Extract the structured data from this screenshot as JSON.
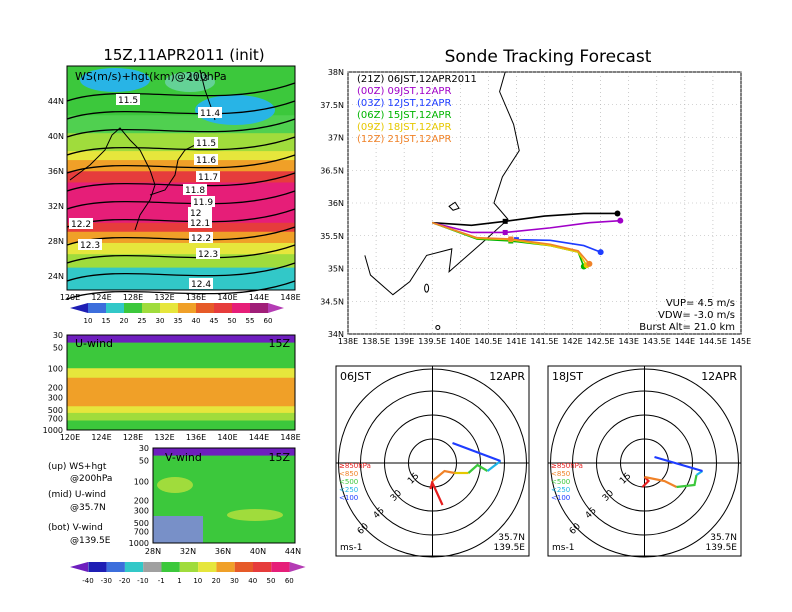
{
  "left": {
    "map_title": "15Z,11APR2011 (init)",
    "map_label": "WS(m/s)+hgt(km)@200hPa",
    "map_top_label": "11.3",
    "lat_ticks": [
      "44N",
      "40N",
      "36N",
      "32N",
      "28N",
      "24N"
    ],
    "lon_ticks": [
      "120E",
      "124E",
      "128E",
      "132E",
      "136E",
      "140E",
      "144E",
      "148E"
    ],
    "hgt_labels": [
      "11.5",
      "11.4",
      "11.5",
      "11.6",
      "11.7",
      "11.8",
      "11.9",
      "12",
      "12.1",
      "12.2",
      "12.3",
      "12.2",
      "12.3",
      "12.4"
    ],
    "ws_colorbar": [
      "10",
      "15",
      "20",
      "25",
      "30",
      "35",
      "40",
      "45",
      "50",
      "55",
      "60"
    ],
    "u_label": "U-wind",
    "u_time": "15Z",
    "u_p_ticks": [
      "30",
      "50",
      "100",
      "200",
      "300",
      "500",
      "700",
      "1000"
    ],
    "u_lon_ticks": [
      "120E",
      "124E",
      "128E",
      "132E",
      "136E",
      "140E",
      "144E",
      "148E"
    ],
    "v_label": "V-wind",
    "v_time": "15Z",
    "v_p_ticks": [
      "30",
      "50",
      "100",
      "200",
      "300",
      "500",
      "700",
      "1000"
    ],
    "v_lat_ticks": [
      "28N",
      "32N",
      "36N",
      "40N",
      "44N"
    ],
    "legend": [
      "(up) WS+hgt",
      "@200hPa",
      "(mid) U-wind",
      "@35.7N",
      "(bot) V-wind",
      "@139.5E"
    ],
    "wind_colorbar": [
      "-40",
      "-30",
      "-20",
      "-10",
      "-1",
      "1",
      "10",
      "20",
      "30",
      "40",
      "50",
      "60"
    ]
  },
  "right": {
    "title": "Sonde Tracking Forecast",
    "launches": [
      {
        "label": "(21Z)  06JST,12APR2011",
        "color": "#000000"
      },
      {
        "label": "(00Z)  09JST,12APR",
        "color": "#a000c8"
      },
      {
        "label": "(03Z)  12JST,12APR",
        "color": "#1e3cff"
      },
      {
        "label": "(06Z)  15JST,12APR",
        "color": "#00b400"
      },
      {
        "label": "(09Z)  18JST,12APR",
        "color": "#e6c800"
      },
      {
        "label": "(12Z)  21JST,12APR",
        "color": "#f08228"
      }
    ],
    "lat_ticks": [
      "38N",
      "37.5N",
      "37N",
      "36.5N",
      "36N",
      "35.5N",
      "35N",
      "34.5N",
      "34N"
    ],
    "lon_ticks": [
      "138E",
      "138.5E",
      "139E",
      "139.5E",
      "140E",
      "140.5E",
      "141E",
      "141.5E",
      "142E",
      "142.5E",
      "143E",
      "143.5E",
      "144E",
      "144.5E",
      "145E"
    ],
    "vup": "VUP=  4.5 m/s",
    "vdw": "VDW= -3.0 m/s",
    "burst": "Burst Alt= 21.0 km",
    "hodo_left": {
      "time": "06JST",
      "date": "12APR",
      "unit": "ms-1",
      "lat": "35.7N",
      "lon": "139.5E"
    },
    "hodo_right": {
      "time": "18JST",
      "date": "12APR",
      "unit": "ms-1",
      "lat": "35.7N",
      "lon": "139.5E"
    },
    "ring_labels": [
      "15",
      "30",
      "45",
      "60"
    ],
    "level_legend": [
      "≥850hPa",
      "<850",
      "<500",
      "<250",
      "<100"
    ]
  },
  "chart_data": [
    {
      "type": "line",
      "title": "Sonde Tracking Forecast",
      "xlim": [
        138,
        145
      ],
      "ylim": [
        34,
        38
      ],
      "launch": {
        "lon": 139.5,
        "lat": 35.7
      },
      "series": [
        {
          "name": "(21Z)  06JST,12APR2011",
          "x": [
            139.5,
            140.2,
            140.8,
            141.5,
            142.2,
            142.8
          ],
          "y": [
            35.7,
            35.66,
            35.72,
            35.8,
            35.84,
            35.84
          ]
        },
        {
          "name": "(00Z)  09JST,12APR",
          "x": [
            139.5,
            140.2,
            140.8,
            141.6,
            142.3,
            142.85
          ],
          "y": [
            35.7,
            35.55,
            35.55,
            35.62,
            35.7,
            35.73
          ]
        },
        {
          "name": "(03Z)  12JST,12APR",
          "x": [
            139.5,
            140.3,
            141.0,
            141.6,
            142.2,
            142.5
          ],
          "y": [
            35.7,
            35.46,
            35.44,
            35.43,
            35.35,
            35.25
          ]
        },
        {
          "name": "(06Z)  15JST,12APR",
          "x": [
            139.5,
            140.3,
            140.9,
            141.6,
            142.1,
            142.2
          ],
          "y": [
            35.7,
            35.45,
            35.42,
            35.35,
            35.25,
            35.03
          ]
        },
        {
          "name": "(09Z)  18JST,12APR",
          "x": [
            139.5,
            140.3,
            140.9,
            141.6,
            142.1,
            142.25
          ],
          "y": [
            35.7,
            35.46,
            35.44,
            35.35,
            35.25,
            35.05
          ]
        },
        {
          "name": "(12Z)  21JST,12APR",
          "x": [
            139.5,
            140.3,
            140.9,
            141.6,
            142.1,
            142.3
          ],
          "y": [
            35.7,
            35.47,
            35.45,
            35.37,
            35.27,
            35.07
          ]
        }
      ]
    }
  ]
}
